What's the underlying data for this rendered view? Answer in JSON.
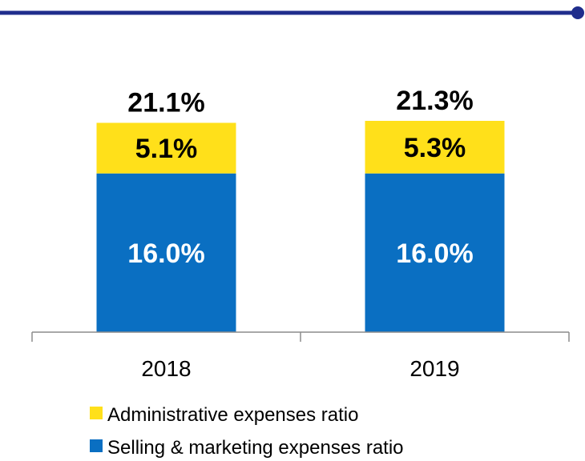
{
  "header": {
    "rule_color": "#1f2d8c"
  },
  "colors": {
    "admin": "#ffe01a",
    "selling": "#0a6fc2",
    "axis": "#8c8c8c",
    "inner_label": "#000000",
    "selling_label": "#ffffff"
  },
  "chart_data": {
    "type": "bar",
    "stacked": true,
    "categories": [
      "2018",
      "2019"
    ],
    "series": [
      {
        "name": "Selling & marketing expenses ratio",
        "values": [
          16.0,
          16.0
        ],
        "labels": [
          "16.0%",
          "16.0%"
        ],
        "color": "#0a6fc2"
      },
      {
        "name": "Administrative expenses ratio",
        "values": [
          5.1,
          5.3
        ],
        "labels": [
          "5.1%",
          "5.3%"
        ],
        "color": "#ffe01a"
      }
    ],
    "totals": [
      21.1,
      21.3
    ],
    "total_labels": [
      "21.1%",
      "21.3%"
    ],
    "ylim": [
      0,
      21.3
    ],
    "legend": {
      "position": "bottom",
      "items": [
        {
          "label": "Administrative expenses ratio",
          "color": "#ffe01a"
        },
        {
          "label": "Selling & marketing expenses ratio",
          "color": "#0a6fc2"
        }
      ]
    },
    "grid": false
  }
}
